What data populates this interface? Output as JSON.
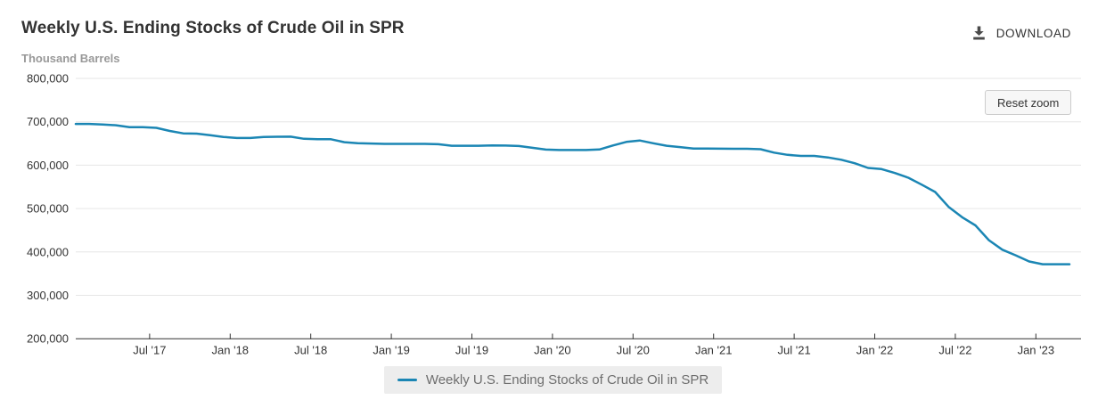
{
  "header": {
    "title": "Weekly U.S. Ending Stocks of Crude Oil in SPR",
    "download_label": "DOWNLOAD",
    "download_icon": "download-arrow-into-tray"
  },
  "chart": {
    "unit_label": "Thousand Barrels",
    "reset_zoom_label": "Reset zoom"
  },
  "legend": {
    "position": "bottom",
    "items": [
      {
        "label": "Weekly U.S. Ending Stocks of Crude Oil in SPR",
        "marker": "line",
        "color": "#1b86b4"
      }
    ]
  },
  "colors": {
    "line": "#1b86b4",
    "grid": "#e6e6e6",
    "axis": "#333333",
    "axis_label": "#333333",
    "title": "#333333",
    "unit_label": "#999999",
    "legend_bg": "#ededed",
    "legend_text": "#6e6e6e",
    "download_icon": "#4a4a4a"
  },
  "chart_data": {
    "type": "line",
    "title": "Weekly U.S. Ending Stocks of Crude Oil in SPR",
    "xlabel": "",
    "ylabel": "Thousand Barrels",
    "ylim": [
      200000,
      800000
    ],
    "y_ticks": [
      800000,
      700000,
      600000,
      500000,
      400000,
      300000,
      200000
    ],
    "x_ticks": [
      {
        "label": "Jul '17",
        "month": "2017-07"
      },
      {
        "label": "Jan '18",
        "month": "2018-01"
      },
      {
        "label": "Jul '18",
        "month": "2018-07"
      },
      {
        "label": "Jan '19",
        "month": "2019-01"
      },
      {
        "label": "Jul '19",
        "month": "2019-07"
      },
      {
        "label": "Jan '20",
        "month": "2020-01"
      },
      {
        "label": "Jul '20",
        "month": "2020-07"
      },
      {
        "label": "Jan '21",
        "month": "2021-01"
      },
      {
        "label": "Jul '21",
        "month": "2021-07"
      },
      {
        "label": "Jan '22",
        "month": "2022-01"
      },
      {
        "label": "Jul '22",
        "month": "2022-07"
      },
      {
        "label": "Jan '23",
        "month": "2023-01"
      }
    ],
    "grid": true,
    "legend_position": "bottom",
    "series": [
      {
        "name": "Weekly U.S. Ending Stocks of Crude Oil in SPR",
        "color": "#1b86b4",
        "x": [
          "2017-01",
          "2017-02",
          "2017-03",
          "2017-04",
          "2017-05",
          "2017-06",
          "2017-07",
          "2017-08",
          "2017-09",
          "2017-10",
          "2017-11",
          "2017-12",
          "2018-01",
          "2018-02",
          "2018-03",
          "2018-04",
          "2018-05",
          "2018-06",
          "2018-07",
          "2018-08",
          "2018-09",
          "2018-10",
          "2018-11",
          "2018-12",
          "2019-01",
          "2019-02",
          "2019-03",
          "2019-04",
          "2019-05",
          "2019-06",
          "2019-07",
          "2019-08",
          "2019-09",
          "2019-10",
          "2019-11",
          "2019-12",
          "2020-01",
          "2020-02",
          "2020-03",
          "2020-04",
          "2020-05",
          "2020-06",
          "2020-07",
          "2020-08",
          "2020-09",
          "2020-10",
          "2020-11",
          "2020-12",
          "2021-01",
          "2021-02",
          "2021-03",
          "2021-04",
          "2021-05",
          "2021-06",
          "2021-07",
          "2021-08",
          "2021-09",
          "2021-10",
          "2021-11",
          "2021-12",
          "2022-01",
          "2022-02",
          "2022-03",
          "2022-04",
          "2022-05",
          "2022-06",
          "2022-07",
          "2022-08",
          "2022-09",
          "2022-10",
          "2022-11",
          "2022-12",
          "2023-01",
          "2023-02",
          "2023-03"
        ],
        "values": [
          695100,
          695100,
          693700,
          691900,
          687700,
          687700,
          686000,
          678900,
          673400,
          672700,
          669100,
          665000,
          662700,
          662700,
          664900,
          665500,
          665800,
          660700,
          660000,
          659700,
          652900,
          650600,
          649800,
          649100,
          649100,
          649100,
          649100,
          648300,
          644800,
          644800,
          644800,
          645400,
          645100,
          644100,
          640100,
          636000,
          635000,
          635000,
          635000,
          636100,
          645300,
          653600,
          656900,
          650600,
          644800,
          641600,
          638100,
          638100,
          638000,
          637800,
          637800,
          636700,
          629000,
          623800,
          621300,
          621300,
          617800,
          612500,
          604500,
          593700,
          591000,
          582000,
          571000,
          555000,
          538100,
          504000,
          480100,
          461200,
          427200,
          405100,
          392100,
          378000,
          371600,
          371600,
          371600
        ]
      }
    ]
  }
}
